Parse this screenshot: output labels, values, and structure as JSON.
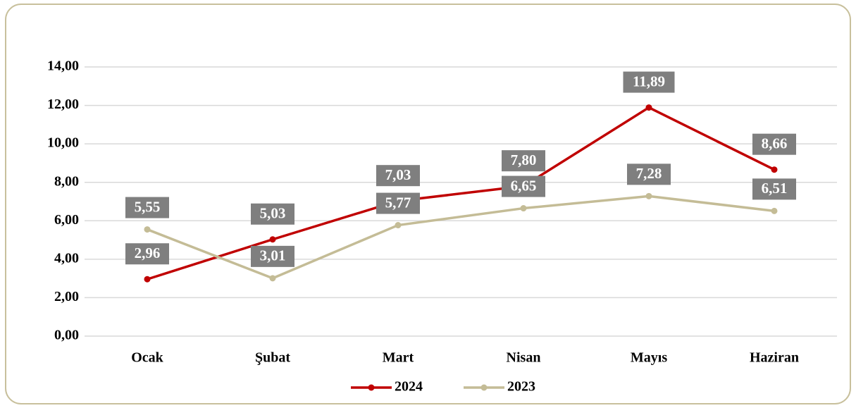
{
  "chart_data": {
    "type": "line",
    "categories": [
      "Ocak",
      "Şubat",
      "Mart",
      "Nisan",
      "Mayıs",
      "Haziran"
    ],
    "series": [
      {
        "name": "2024",
        "color": "#c00000",
        "values": [
          2.96,
          5.03,
          7.03,
          7.8,
          11.89,
          8.66
        ],
        "value_labels": [
          "2,96",
          "5,03",
          "7,03",
          "7,80",
          "11,89",
          "8,66"
        ]
      },
      {
        "name": "2023",
        "color": "#c4bc96",
        "values": [
          5.55,
          3.01,
          5.77,
          6.65,
          7.28,
          6.51
        ],
        "value_labels": [
          "5,55",
          "3,01",
          "5,77",
          "6,65",
          "7,28",
          "6,51"
        ]
      }
    ],
    "ylim": [
      0,
      14
    ],
    "yticks": [
      {
        "value": 0,
        "label": "0,00"
      },
      {
        "value": 2,
        "label": "2,00"
      },
      {
        "value": 4,
        "label": "4,00"
      },
      {
        "value": 6,
        "label": "6,00"
      },
      {
        "value": 8,
        "label": "8,00"
      },
      {
        "value": 10,
        "label": "10,00"
      },
      {
        "value": 12,
        "label": "12,00"
      },
      {
        "value": 14,
        "label": "14,00"
      }
    ],
    "grid": true,
    "legend": "bottom"
  }
}
